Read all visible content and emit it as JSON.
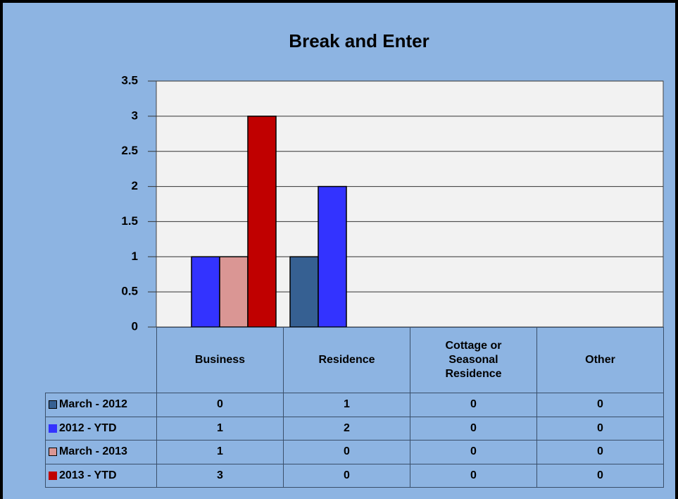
{
  "chart_data": {
    "type": "bar",
    "title": "Break and Enter",
    "categories": [
      "Business",
      "Residence",
      "Cottage or Seasonal Residence",
      "Other"
    ],
    "series": [
      {
        "name": "March - 2012",
        "color": "#366092",
        "values": [
          0,
          1,
          0,
          0
        ]
      },
      {
        "name": "2012 - YTD",
        "color": "#3333ff",
        "values": [
          1,
          2,
          0,
          0
        ]
      },
      {
        "name": "March - 2013",
        "color": "#da9694",
        "values": [
          1,
          0,
          0,
          0
        ]
      },
      {
        "name": "2013 - YTD",
        "color": "#c00000",
        "values": [
          3,
          0,
          0,
          0
        ]
      }
    ],
    "ylim": [
      0,
      3.5
    ],
    "yticks": [
      0,
      0.5,
      1,
      1.5,
      2,
      2.5,
      3,
      3.5
    ],
    "grid": true
  }
}
